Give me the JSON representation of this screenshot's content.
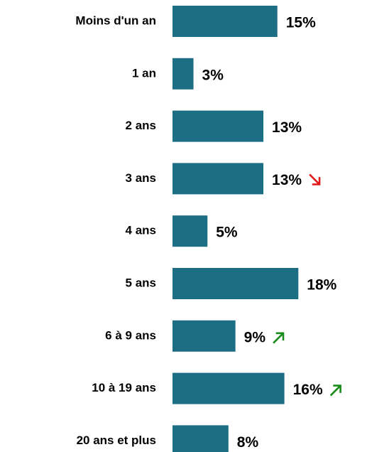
{
  "chart_data": {
    "type": "barh",
    "categories": [
      "Moins d'un an",
      "1 an",
      "2 ans",
      "3 ans",
      "4 ans",
      "5 ans",
      "6 à 9 ans",
      "10 à 19 ans",
      "20 ans et plus"
    ],
    "values": [
      15,
      3,
      13,
      13,
      5,
      18,
      9,
      16,
      8
    ],
    "value_labels": [
      "15%",
      "3%",
      "13%",
      "13%",
      "5%",
      "18%",
      "9%",
      "16%",
      "8%"
    ],
    "color": "#1c6e84",
    "trends": [
      null,
      null,
      null,
      "down",
      null,
      null,
      "up",
      "up",
      null
    ],
    "trend_colors": {
      "down": "#e31a1c",
      "up": "#1a8a1a"
    }
  }
}
